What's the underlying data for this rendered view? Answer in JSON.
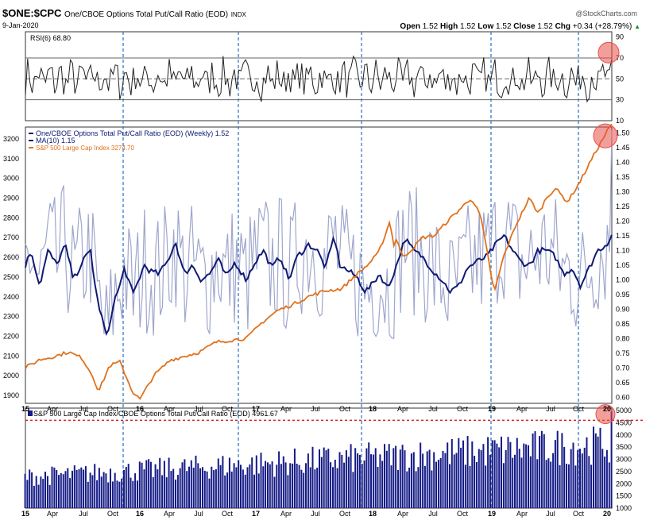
{
  "header": {
    "symbol": "$ONE:$CPC",
    "description": "One/CBOE Options Total Put/Call Ratio (EOD)",
    "exchange": "INDX",
    "date": "9-Jan-2020",
    "brand": "@StockCharts.com",
    "open_label": "Open",
    "open": "1.52",
    "high_label": "High",
    "high": "1.52",
    "low_label": "Low",
    "low": "1.52",
    "close_label": "Close",
    "close": "1.52",
    "chg_label": "Chg",
    "chg": "+0.34 (+28.79%)"
  },
  "colors": {
    "ratio": "#9fa6cc",
    "ma": "#0f1a73",
    "spx": "#e0711c",
    "bars": "#141a86",
    "highlight": "#e8504a",
    "vline": "#2a6fbf",
    "refline": "#d42121"
  },
  "x_labels": [
    "15",
    "Apr",
    "Jul",
    "Oct",
    "16",
    "Apr",
    "Jul",
    "Oct",
    "17",
    "Apr",
    "Jul",
    "Oct",
    "18",
    "Apr",
    "Jul",
    "Oct",
    "19",
    "Apr",
    "Jul",
    "Oct",
    "20"
  ],
  "chart_data": [
    {
      "type": "line",
      "panel": "top",
      "legend": "RSI(6) 68.80",
      "yticks": [
        10,
        30,
        50,
        70,
        90
      ],
      "ylim": [
        10,
        95
      ],
      "reference_lines": [
        30,
        50,
        70
      ],
      "series": [
        {
          "name": "RSI(6)",
          "last": 68.8
        }
      ]
    },
    {
      "type": "line",
      "panel": "main",
      "legend_entries": [
        "One/CBOE Options Total Put/Call Ratio (EOD) (Weekly) 1.52",
        "MA(10) 1.15",
        "S&P 500 Large Cap Index 3274.70"
      ],
      "right_axis_ticks": [
        "0.60",
        "0.65",
        "0.70",
        "0.75",
        "0.80",
        "0.85",
        "0.90",
        "0.95",
        "1.00",
        "1.05",
        "1.10",
        "1.15",
        "1.20",
        "1.25",
        "1.30",
        "1.35",
        "1.40",
        "1.45",
        "1.50"
      ],
      "left_axis_ticks": [
        "1900",
        "2000",
        "2100",
        "2200",
        "2300",
        "2400",
        "2500",
        "2600",
        "2700",
        "2800",
        "2900",
        "3000",
        "3100",
        "3200"
      ],
      "right_ylim": [
        0.58,
        1.52
      ],
      "left_ylim": [
        1860,
        3260
      ],
      "series": [
        {
          "name": "One/CBOE Options Total Put/Call Ratio (EOD) (Weekly)",
          "axis": "right",
          "last": 1.52
        },
        {
          "name": "MA(10)",
          "axis": "right",
          "anchors": [
            [
              0,
              1.05
            ],
            [
              4,
              1.1
            ],
            [
              10,
              0.98
            ],
            [
              16,
              1.1
            ],
            [
              22,
              1.05
            ],
            [
              28,
              1.12
            ],
            [
              34,
              1.0
            ],
            [
              40,
              1.06
            ],
            [
              46,
              1.1
            ],
            [
              50,
              0.95
            ],
            [
              55,
              0.85
            ],
            [
              58,
              0.8
            ],
            [
              62,
              0.92
            ],
            [
              66,
              0.97
            ],
            [
              70,
              1.04
            ],
            [
              76,
              0.95
            ],
            [
              80,
              1.0
            ],
            [
              84,
              1.05
            ],
            [
              88,
              1.03
            ],
            [
              94,
              1.02
            ],
            [
              100,
              1.06
            ],
            [
              106,
              1.13
            ],
            [
              112,
              1.02
            ],
            [
              118,
              1.05
            ],
            [
              124,
              1.0
            ],
            [
              130,
              1.02
            ],
            [
              136,
              1.07
            ],
            [
              142,
              1.01
            ],
            [
              148,
              1.06
            ],
            [
              156,
              1.0
            ],
            [
              162,
              1.06
            ],
            [
              168,
              1.1
            ],
            [
              174,
              1.04
            ],
            [
              180,
              1.08
            ],
            [
              186,
              1.0
            ],
            [
              192,
              1.08
            ],
            [
              200,
              1.12
            ],
            [
              206,
              1.1
            ],
            [
              212,
              1.04
            ],
            [
              218,
              1.15
            ],
            [
              222,
              1.05
            ],
            [
              228,
              1.03
            ],
            [
              234,
              1.01
            ],
            [
              240,
              0.96
            ],
            [
              244,
              0.98
            ],
            [
              250,
              1.02
            ],
            [
              256,
              0.97
            ],
            [
              262,
              1.05
            ],
            [
              268,
              1.14
            ],
            [
              274,
              1.1
            ],
            [
              280,
              1.08
            ],
            [
              288,
              1.03
            ],
            [
              294,
              1.0
            ],
            [
              300,
              0.96
            ],
            [
              306,
              0.98
            ],
            [
              312,
              1.04
            ],
            [
              318,
              1.06
            ],
            [
              326,
              1.08
            ],
            [
              332,
              1.12
            ],
            [
              338,
              1.15
            ],
            [
              344,
              1.1
            ],
            [
              350,
              1.06
            ],
            [
              356,
              1.05
            ],
            [
              362,
              1.1
            ],
            [
              368,
              1.1
            ],
            [
              374,
              1.08
            ],
            [
              380,
              1.02
            ],
            [
              386,
              1.04
            ],
            [
              392,
              0.98
            ],
            [
              398,
              1.04
            ],
            [
              404,
              1.1
            ],
            [
              410,
              1.12
            ],
            [
              414,
              1.15
            ]
          ],
          "last": 1.15
        },
        {
          "name": "S&P 500 Large Cap Index",
          "axis": "left",
          "anchors": [
            [
              0,
              2040
            ],
            [
              18,
              2080
            ],
            [
              40,
              2100
            ],
            [
              56,
              2120
            ],
            [
              74,
              2090
            ],
            [
              88,
              2000
            ],
            [
              96,
              1920
            ],
            [
              110,
              2050
            ],
            [
              124,
              2070
            ],
            [
              140,
              1920
            ],
            [
              150,
              1880
            ],
            [
              168,
              2000
            ],
            [
              190,
              2080
            ],
            [
              210,
              2100
            ],
            [
              228,
              2120
            ],
            [
              250,
              2170
            ],
            [
              268,
              2180
            ],
            [
              290,
              2190
            ],
            [
              310,
              2270
            ],
            [
              330,
              2330
            ],
            [
              350,
              2360
            ],
            [
              370,
              2400
            ],
            [
              392,
              2430
            ],
            [
              414,
              2440
            ],
            [
              430,
              2500
            ],
            [
              448,
              2560
            ],
            [
              462,
              2620
            ],
            [
              470,
              2700
            ],
            [
              478,
              2790
            ],
            [
              482,
              2650
            ],
            [
              486,
              2700
            ],
            [
              494,
              2600
            ],
            [
              506,
              2640
            ],
            [
              520,
              2700
            ],
            [
              536,
              2710
            ],
            [
              552,
              2780
            ],
            [
              568,
              2840
            ],
            [
              584,
              2900
            ],
            [
              596,
              2810
            ],
            [
              606,
              2600
            ],
            [
              614,
              2420
            ],
            [
              626,
              2600
            ],
            [
              642,
              2760
            ],
            [
              660,
              2900
            ],
            [
              672,
              2820
            ],
            [
              682,
              2900
            ],
            [
              694,
              2950
            ],
            [
              710,
              2880
            ],
            [
              726,
              2980
            ],
            [
              742,
              3100
            ],
            [
              752,
              3170
            ],
            [
              762,
              3240
            ],
            [
              768,
              3275
            ]
          ],
          "last": 3274.7
        }
      ]
    },
    {
      "type": "bar",
      "panel": "bottom",
      "legend": "S&P 500 Large Cap Index/CBOE Options Total Put/Call Ratio (EOD) 4961.67",
      "yticks": [
        1000,
        1500,
        2000,
        2500,
        3000,
        3500,
        4000,
        4500,
        5000
      ],
      "ylim": [
        1000,
        5100
      ],
      "reference_line": 4600,
      "series": [
        {
          "name": "S&P 500 Large Cap Index/CBOE Options Total Put/Call Ratio (EOD)",
          "last": 4961.67
        }
      ]
    }
  ]
}
